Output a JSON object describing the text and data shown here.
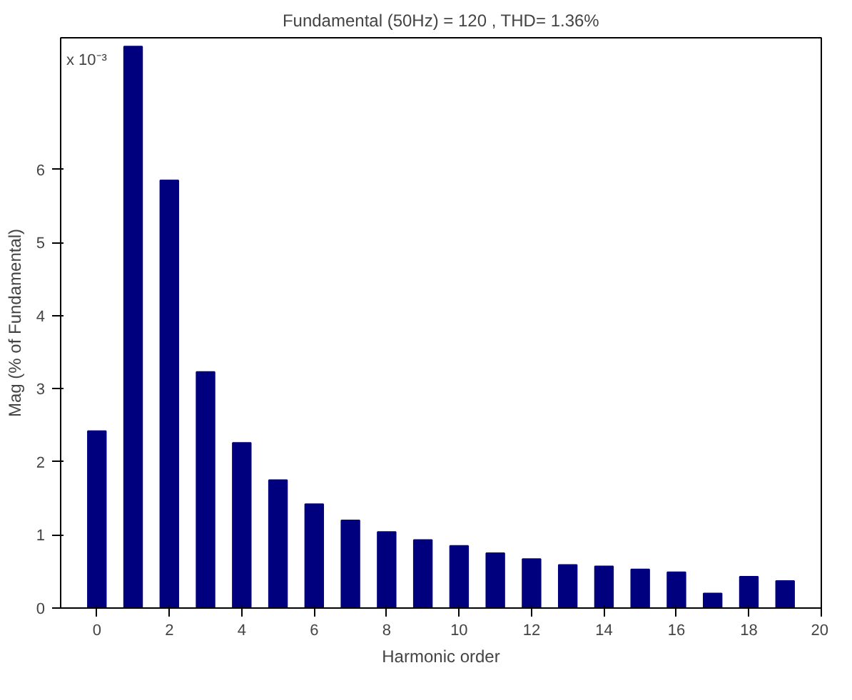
{
  "chart_data": {
    "type": "bar",
    "title": "Fundamental (50Hz) = 120 , THD= 1.36%",
    "xlabel": "Harmonic order",
    "ylabel": "Mag (% of Fundamental)",
    "x": [
      0,
      1,
      2,
      3,
      4,
      5,
      6,
      7,
      8,
      9,
      10,
      11,
      12,
      13,
      14,
      15,
      16,
      17,
      18,
      19
    ],
    "values": [
      2.42,
      7.68,
      5.85,
      3.23,
      2.26,
      1.75,
      1.42,
      1.2,
      1.04,
      0.93,
      0.85,
      0.75,
      0.67,
      0.59,
      0.57,
      0.53,
      0.49,
      0.2,
      0.43,
      0.37
    ],
    "color": "#00007f",
    "xlim": [
      -1,
      20
    ],
    "xticks": [
      0,
      2,
      4,
      6,
      8,
      10,
      12,
      14,
      16,
      18,
      20
    ],
    "ylim": [
      0,
      7.8
    ],
    "yticks": [
      0,
      1,
      2,
      3,
      4,
      5,
      6
    ],
    "annotations": [
      "x 10⁻³"
    ],
    "grid": false
  }
}
